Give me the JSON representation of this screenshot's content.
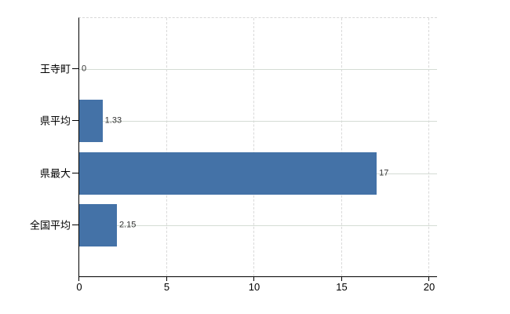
{
  "chart_data": {
    "type": "bar",
    "orientation": "horizontal",
    "title": "",
    "xlabel": "",
    "ylabel": "",
    "categories": [
      "王寺町",
      "県平均",
      "県最大",
      "全国平均"
    ],
    "values": [
      0,
      1.33,
      17,
      2.15
    ],
    "value_labels": [
      "0",
      "1.33",
      "17",
      "2.15"
    ],
    "xlim": [
      0,
      20
    ],
    "x_ticks": [
      "0",
      "5",
      "10",
      "15",
      "20"
    ],
    "x_tick_values": [
      0,
      5,
      10,
      15,
      20
    ],
    "grid": "on",
    "legend": "none",
    "colors": {
      "bar": "#4472a7",
      "axis": "#000000",
      "h_gridline": "#d4dcd4",
      "v_gridline": "#d9d9d9",
      "value_label_text": "#333333",
      "category_label_text": "#000000",
      "background": "#ffffff"
    }
  }
}
